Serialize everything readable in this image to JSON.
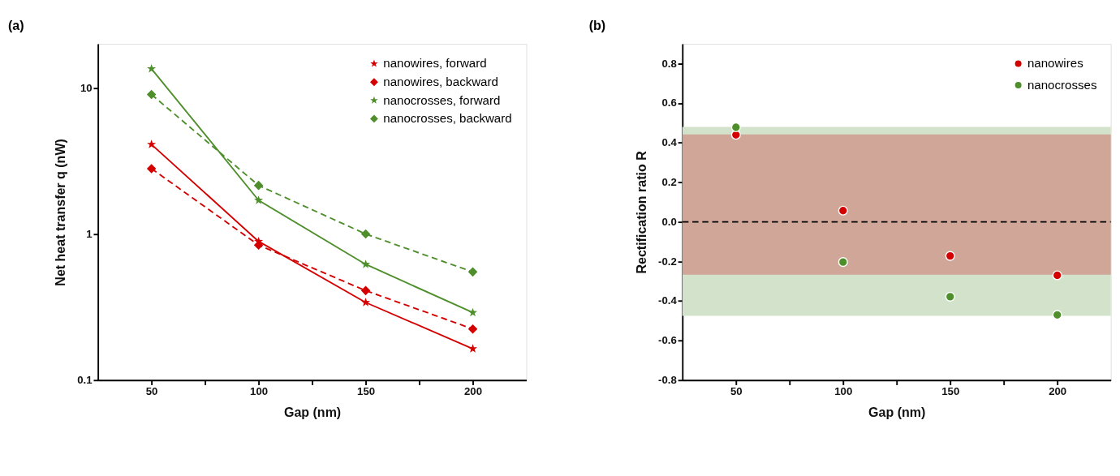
{
  "chart_data": [
    {
      "type": "line",
      "title": "(a)",
      "xlabel": "Gap (nm)",
      "ylabel": "Net heat transfer q (nW)",
      "log": "y",
      "grid": false,
      "legend": "top right",
      "x": [
        50,
        100,
        150,
        200
      ],
      "xlim": [
        25,
        225
      ],
      "xticks": [
        50,
        {
          "value": 75,
          "label": null
        },
        100,
        {
          "value": 125,
          "label": null
        },
        150,
        {
          "value": 175,
          "label": null
        },
        200
      ],
      "ylim": [
        0.1,
        20
      ],
      "yticks": [
        0.1,
        1,
        10
      ],
      "series": [
        {
          "name": "nanowires, forward",
          "color": "#d40000",
          "marker": "star",
          "line_style": "solid",
          "values": [
            4.1,
            0.89,
            0.34,
            0.164
          ]
        },
        {
          "name": "nanowires, backward",
          "color": "#d40000",
          "marker": "diamond",
          "line_style": "dashed",
          "values": [
            2.8,
            0.84,
            0.41,
            0.224
          ]
        },
        {
          "name": "nanocrosses, forward",
          "color": "#4e8f2c",
          "marker": "star",
          "line_style": "solid",
          "values": [
            13.5,
            1.7,
            0.62,
            0.29
          ]
        },
        {
          "name": "nanocrosses, backward",
          "color": "#4e8f2c",
          "marker": "diamond",
          "line_style": "dashed",
          "values": [
            9.0,
            2.15,
            1.0,
            0.55
          ]
        }
      ]
    },
    {
      "type": "scatter",
      "title": "(b)",
      "xlabel": "Gap (nm)",
      "ylabel": "Rectification ratio R",
      "grid": false,
      "legend": "top right",
      "marker": "circle",
      "x": [
        50,
        100,
        150,
        200
      ],
      "xlim": [
        25,
        225
      ],
      "xticks": [
        50,
        {
          "value": 75,
          "label": null
        },
        100,
        {
          "value": 125,
          "label": null
        },
        150,
        {
          "value": 175,
          "label": null
        },
        200
      ],
      "ylim": [
        -0.8,
        0.9
      ],
      "yticks": [
        -0.8,
        -0.6,
        -0.4,
        -0.2,
        {
          "value": 0,
          "label": "0.0"
        },
        0.2,
        0.4,
        0.6,
        0.8
      ],
      "bands": [
        {
          "axis": "y",
          "from": -0.475,
          "to": 0.48,
          "color": "#d3e3cb"
        },
        {
          "axis": "y",
          "from": -0.267,
          "to": 0.442,
          "color": "#cfa698"
        }
      ],
      "ref_lines": [
        {
          "axis": "y",
          "value": 0,
          "color": "#000000",
          "line_style": "dashed"
        }
      ],
      "series": [
        {
          "name": "nanowires",
          "color": "#d40000",
          "values": [
            0.44,
            0.057,
            -0.172,
            -0.27
          ]
        },
        {
          "name": "nanocrosses",
          "color": "#4e8f2c",
          "values": [
            0.478,
            -0.203,
            -0.378,
            -0.47
          ]
        }
      ]
    }
  ]
}
